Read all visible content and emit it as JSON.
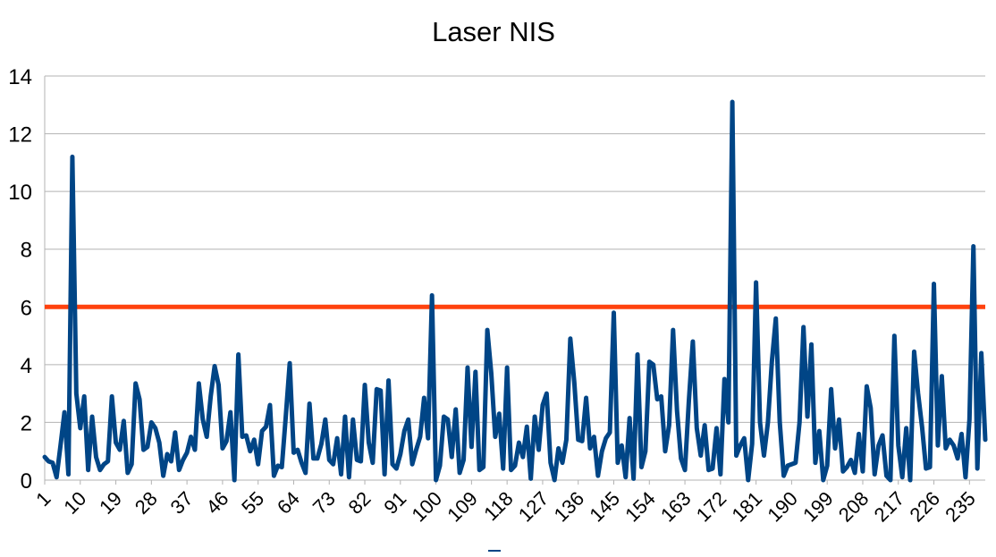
{
  "chart_data": {
    "type": "line",
    "title": "Laser NIS",
    "xlabel": "",
    "ylabel": "",
    "ylim": [
      0,
      14
    ],
    "yticks": [
      0,
      2,
      4,
      6,
      8,
      10,
      12,
      14
    ],
    "x_range": [
      1,
      239
    ],
    "xtick_labels": [
      "1",
      "10",
      "19",
      "28",
      "37",
      "46",
      "55",
      "64",
      "73",
      "82",
      "91",
      "100",
      "109",
      "118",
      "127",
      "136",
      "145",
      "154",
      "163",
      "172",
      "181",
      "190",
      "199",
      "208",
      "217",
      "226",
      "235"
    ],
    "grid": "horizontal",
    "legend": "bottom",
    "colors": {
      "series": "#004586",
      "threshold": "#ff420e",
      "grid": "#b3b3b3"
    },
    "series": [
      {
        "values": [
          0.8,
          0.65,
          0.6,
          0.1,
          1.2,
          2.35,
          0.2,
          11.2,
          3,
          1.8,
          2.9,
          0.35,
          2.2,
          0.8,
          0.35,
          0.55,
          0.65,
          2.9,
          1.3,
          1.05,
          2.05,
          0.25,
          0.55,
          3.35,
          2.8,
          1.05,
          1.15,
          2,
          1.8,
          1.3,
          0.15,
          0.9,
          0.65,
          1.65,
          0.35,
          0.7,
          0.95,
          1.5,
          1.05,
          3.35,
          2.1,
          1.5,
          2.9,
          3.95,
          3.3,
          1.1,
          1.35,
          2.35,
          0.0,
          4.35,
          1.5,
          1.55,
          1.0,
          1.4,
          0.55,
          1.7,
          1.85,
          2.6,
          0.15,
          0.5,
          0.45,
          2.2,
          4.05,
          0.95,
          1.05,
          0.6,
          0.25,
          2.65,
          0.75,
          0.75,
          1.25,
          2.1,
          0.7,
          0.55,
          1.45,
          0.2,
          2.2,
          0.1,
          2.1,
          0.7,
          0.65,
          3.3,
          1.3,
          0.6,
          3.15,
          3.1,
          0.2,
          3.45,
          0.55,
          0.4,
          0.9,
          1.7,
          2.1,
          0.55,
          1.05,
          1.5,
          2.85,
          1.45,
          6.4,
          0.0,
          0.5,
          2.2,
          2.1,
          0.8,
          2.45,
          0.25,
          0.7,
          3.9,
          1.15,
          3.75,
          0.35,
          0.45,
          5.2,
          3.7,
          1.5,
          2.3,
          0.4,
          3.9,
          0.35,
          0.5,
          1.3,
          0.8,
          1.85,
          0.05,
          2.2,
          1.05,
          2.6,
          3.0,
          0.6,
          0.0,
          1.1,
          0.6,
          1.4,
          4.9,
          3.4,
          1.4,
          1.35,
          2.85,
          1.1,
          1.5,
          0.15,
          1.0,
          1.45,
          1.65,
          5.8,
          0.6,
          1.2,
          0.1,
          2.15,
          0.05,
          4.35,
          0.45,
          1.0,
          4.1,
          4.0,
          2.8,
          2.9,
          1.0,
          1.9,
          5.2,
          2.4,
          0.75,
          0.35,
          2.75,
          4.8,
          1.8,
          0.85,
          1.9,
          0.35,
          0.4,
          1.8,
          0.2,
          3.5,
          2.0,
          13.1,
          0.85,
          1.2,
          1.45,
          0.0,
          1.25,
          6.85,
          2.0,
          0.85,
          2.0,
          4.1,
          5.6,
          2.0,
          0.15,
          0.5,
          0.55,
          0.6,
          2.0,
          5.3,
          2.2,
          4.7,
          0.6,
          1.7,
          0.0,
          0.5,
          3.15,
          1.1,
          2.1,
          0.3,
          0.45,
          0.7,
          0.25,
          1.6,
          0.3,
          3.25,
          2.5,
          0.2,
          1.2,
          1.55,
          0.15,
          0.0,
          5.0,
          1.2,
          0.1,
          1.8,
          0.0,
          4.45,
          3.0,
          1.85,
          0.4,
          0.45,
          6.8,
          1.2,
          3.6,
          1.1,
          1.4,
          1.2,
          0.75,
          1.6,
          0.1,
          2.1,
          8.1,
          0.4,
          4.4,
          1.4
        ]
      },
      {
        "values": "constant",
        "constant": 6
      }
    ]
  }
}
